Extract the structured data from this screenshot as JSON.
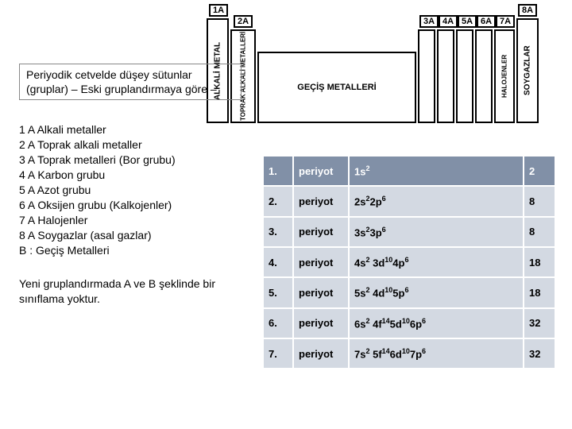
{
  "intro": "Periyodik cetvelde düşey sütunlar (gruplar) – Eski gruplandırmaya göre –",
  "groups": [
    "1 A Alkali metaller",
    "2 A Toprak alkali metaller",
    "3 A Toprak metalleri (Bor grubu)",
    "4 A Karbon grubu",
    "5 A Azot grubu",
    "6 A Oksijen grubu (Kalkojenler)",
    "7 A Halojenler",
    "8 A Soygazlar (asal gazlar)",
    "B : Geçiş Metalleri"
  ],
  "footer": "Yeni gruplandırmada A ve B şeklinde bir sınıflama yoktur.",
  "diagram": {
    "labels": {
      "l1A": "1A",
      "l2A": "2A",
      "l3A": "3A",
      "l4A": "4A",
      "l5A": "5A",
      "l6A": "6A",
      "l7A": "7A",
      "l8A": "8A"
    },
    "cols": {
      "alkali": "ALKALİ METAL",
      "toprak": "TOPRAK ALKALİ METALLERİ",
      "gecis": "GEÇİŞ METALLERİ",
      "halojen": "HALOJENLER",
      "soygaz": "SOYGAZLAR"
    }
  },
  "table": {
    "header_bg": "#8190a7",
    "header_fg": "#ffffff",
    "row_bg": "#d3d9e2",
    "row_fg": "#000000",
    "rows": [
      {
        "n": "1.",
        "p": "periyot",
        "conf": "1s<sup>2</sup>",
        "count": "2"
      },
      {
        "n": "2.",
        "p": "periyot",
        "conf": "2s<sup>2</sup>2p<sup>6</sup>",
        "count": "8"
      },
      {
        "n": "3.",
        "p": "periyot",
        "conf": "3s<sup>2</sup>3p<sup>6</sup>",
        "count": "8"
      },
      {
        "n": "4.",
        "p": "periyot",
        "conf": "4s<sup>2</sup> 3d<sup>10</sup>4p<sup>6</sup>",
        "count": "18"
      },
      {
        "n": "5.",
        "p": "periyot",
        "conf": "5s<sup>2</sup> 4d<sup>10</sup>5p<sup>6</sup>",
        "count": "18"
      },
      {
        "n": "6.",
        "p": "periyot",
        "conf": "6s<sup>2</sup> 4f<sup>14</sup>5d<sup>10</sup>6p<sup>6</sup>",
        "count": "32"
      },
      {
        "n": "7.",
        "p": "periyot",
        "conf": "7s<sup>2</sup> 5f<sup>14</sup>6d<sup>10</sup>7p<sup>6</sup>",
        "count": "32"
      }
    ]
  }
}
